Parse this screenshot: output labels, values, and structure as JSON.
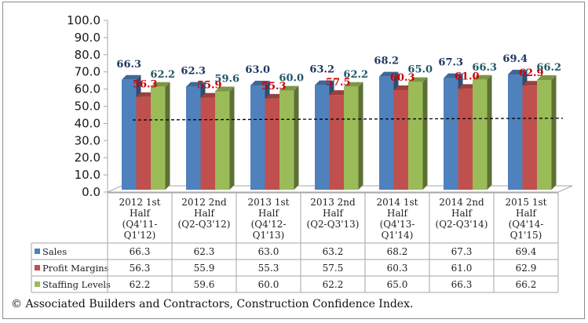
{
  "chart_data": {
    "type": "bar",
    "title": "",
    "xlabel": "",
    "ylabel": "",
    "ylim": [
      0,
      100
    ],
    "yticks": [
      "0.0",
      "10.0",
      "20.0",
      "30.0",
      "40.0",
      "50.0",
      "60.0",
      "70.0",
      "80.0",
      "90.0",
      "100.0"
    ],
    "grid": false,
    "legend": "data-table",
    "categories": [
      [
        "2012 1st",
        "Half",
        "(Q4'11-",
        "Q1'12)"
      ],
      [
        "2012 2nd",
        "Half",
        "(Q2-Q3'12)"
      ],
      [
        "2013 1st",
        "Half",
        "(Q4'12-",
        "Q1'13)"
      ],
      [
        "2013 2nd",
        "Half",
        "(Q2-Q3'13)"
      ],
      [
        "2014 1st",
        "Half",
        "(Q4'13-",
        "Q1'14)"
      ],
      [
        "2014 2nd",
        "Half",
        "(Q2-Q3'14)"
      ],
      [
        "2015 1st",
        "Half",
        "(Q4'14-",
        "Q1'15)"
      ]
    ],
    "series": [
      {
        "name": "Sales",
        "color": "#4f81bd",
        "label_color": "#1f3864",
        "values": [
          66.3,
          62.3,
          63.0,
          63.2,
          68.2,
          67.3,
          69.4
        ]
      },
      {
        "name": "Profit Margins",
        "color": "#c0504d",
        "label_color": "#cc0000",
        "values": [
          56.3,
          55.9,
          55.3,
          57.5,
          60.3,
          61.0,
          62.9
        ]
      },
      {
        "name": "Staffing Levels",
        "color": "#9bbb59",
        "label_color": "#215868",
        "values": [
          62.2,
          59.6,
          60.0,
          62.2,
          65.0,
          66.3,
          66.2
        ]
      }
    ],
    "trendline": {
      "style": "dashed",
      "color": "#000000",
      "start_value": 42,
      "end_value": 43
    },
    "data_table": true
  },
  "footer": "© Associated Builders and Contractors, Construction Confidence Index."
}
